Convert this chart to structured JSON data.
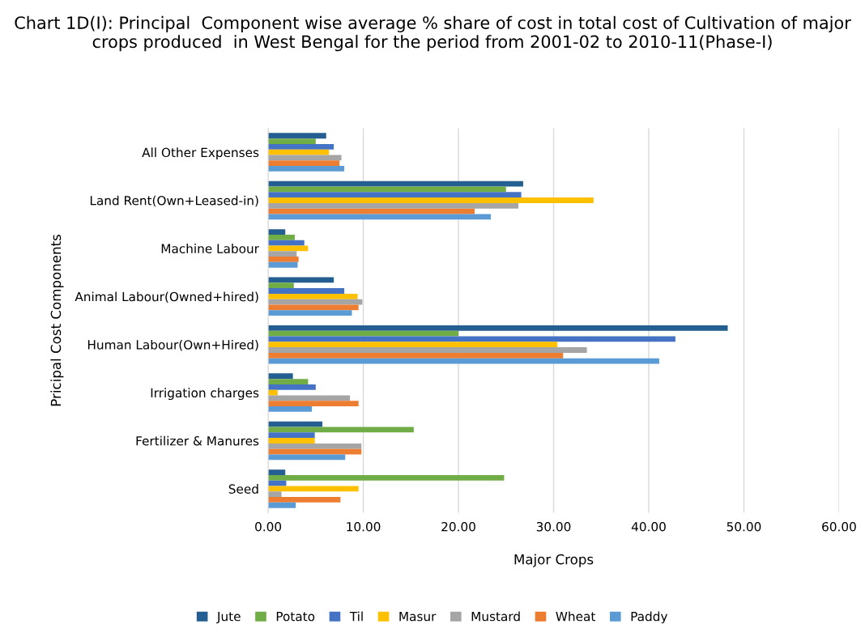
{
  "chart_data": {
    "type": "bar",
    "orientation": "horizontal",
    "title": "Chart 1D(I): Principal  Component wise average % share of cost in total cost of Cultivation of major crops produced  in West Bengal for the period from 2001-02 to 2010-11(Phase-I)",
    "xlabel": "Major Crops",
    "ylabel": "Pricipal Cost Components",
    "categories": [
      "All Other Expenses",
      "Land Rent(Own+Leased-in)",
      "Machine Labour",
      "Animal Labour(Owned+hired)",
      "Human Labour(Own+Hired)",
      "Irrigation charges",
      "Fertilizer & Manures",
      "Seed"
    ],
    "series": [
      {
        "name": "Jute",
        "color": "#255e91",
        "values": [
          6.1,
          26.8,
          1.8,
          6.9,
          48.3,
          2.6,
          5.7,
          1.8
        ]
      },
      {
        "name": "Potato",
        "color": "#70ad47",
        "values": [
          5.0,
          25.0,
          2.8,
          2.7,
          20.0,
          4.2,
          15.3,
          24.8
        ]
      },
      {
        "name": "Til",
        "color": "#4472c4",
        "values": [
          6.9,
          26.6,
          3.8,
          8.0,
          42.8,
          5.0,
          4.9,
          1.9
        ]
      },
      {
        "name": "Masur",
        "color": "#ffc000",
        "values": [
          6.4,
          34.2,
          4.2,
          9.4,
          30.4,
          1.0,
          4.9,
          9.5
        ]
      },
      {
        "name": "Mustard",
        "color": "#a5a5a5",
        "values": [
          7.7,
          26.3,
          3.0,
          9.9,
          33.5,
          8.6,
          9.8,
          1.4
        ]
      },
      {
        "name": "Wheat",
        "color": "#ed7d31",
        "values": [
          7.5,
          21.7,
          3.2,
          9.5,
          31.0,
          9.5,
          9.8,
          7.6
        ]
      },
      {
        "name": "Paddy",
        "color": "#5b9bd5",
        "values": [
          8.0,
          23.4,
          3.1,
          8.8,
          41.1,
          4.6,
          8.1,
          2.9
        ]
      }
    ],
    "xlim": [
      0,
      60
    ],
    "xticks": [
      {
        "value": 0,
        "label": "0.00"
      },
      {
        "value": 10,
        "label": "10.00"
      },
      {
        "value": 20,
        "label": "20.00"
      },
      {
        "value": 30,
        "label": "30.00"
      },
      {
        "value": 40,
        "label": "40.00"
      },
      {
        "value": 50,
        "label": "50.00"
      },
      {
        "value": 60,
        "label": "60.00"
      }
    ],
    "grid": "x",
    "legend": "bottom"
  }
}
